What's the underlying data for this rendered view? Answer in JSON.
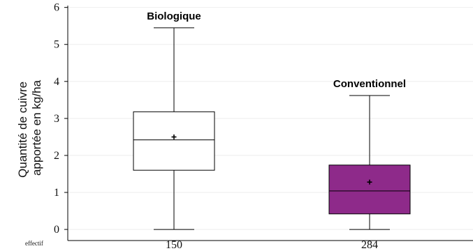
{
  "chart_data": {
    "type": "box",
    "y_axis": {
      "label_lines": [
        "Quantité de cuivre",
        "apportée en kg/ha"
      ],
      "ticks": [
        0,
        1,
        2,
        3,
        4,
        5,
        6
      ],
      "ylim": [
        -0.3,
        6.05
      ]
    },
    "footer_label": "effectif",
    "grid": true,
    "boxes": [
      {
        "name": "Biologique",
        "count": "150",
        "min": 0,
        "q1": 1.6,
        "median": 2.42,
        "mean": 2.5,
        "q3": 3.18,
        "max": 5.45,
        "color": "#ffffff"
      },
      {
        "name": "Conventionnel",
        "count": "284",
        "min": 0,
        "q1": 0.42,
        "median": 1.04,
        "mean": 1.28,
        "q3": 1.74,
        "max": 3.62,
        "color": "#8e2a8a"
      }
    ]
  }
}
